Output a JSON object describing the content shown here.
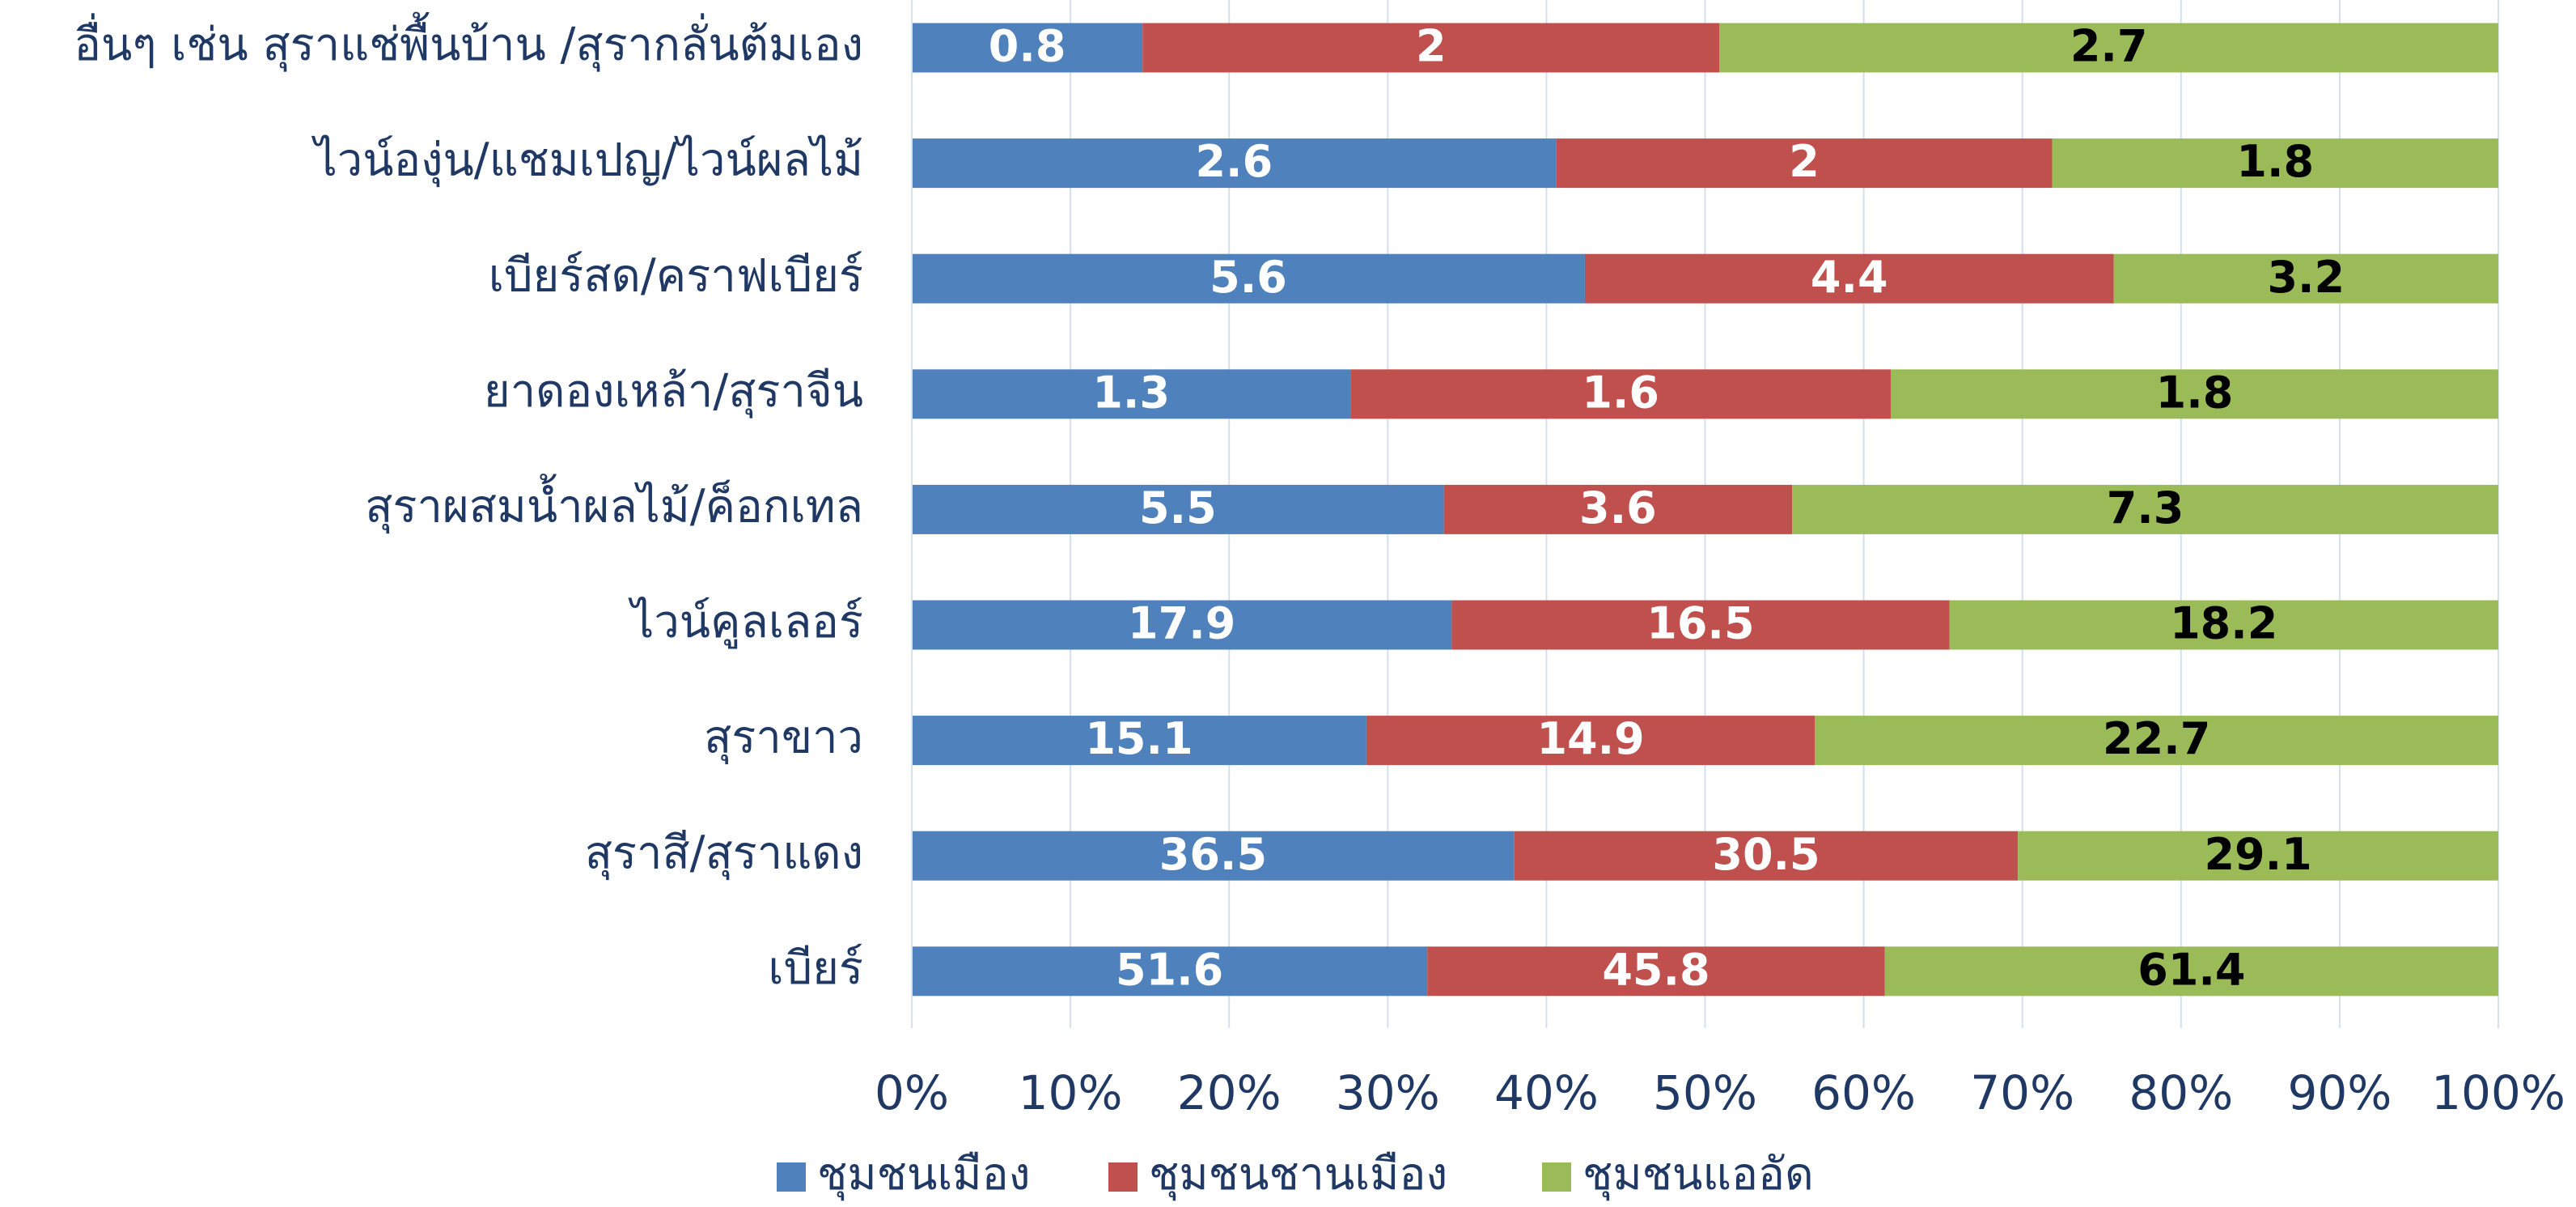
{
  "chart_data": {
    "type": "stacked_bar_100_horizontal",
    "categories": [
      "อื่นๆ เช่น สุราแช่พื้นบ้าน /สุรากลั่นต้มเอง",
      "ไวน์องุ่น/แชมเปญ/ไวน์ผลไม้",
      "เบียร์สด/คราฟเบียร์",
      "ยาดองเหล้า/สุราจีน",
      "สุราผสมน้ำผลไม้/ค็อกเทล",
      "ไวน์คูลเลอร์",
      "สุราขาว",
      "สุราสี/สุราแดง",
      "เบียร์"
    ],
    "series": [
      {
        "name": "ชุมชนเมือง",
        "color": "#4f81bd",
        "label_color": "#ffffff",
        "values": [
          0.8,
          2.6,
          5.6,
          1.3,
          5.5,
          17.9,
          15.1,
          36.5,
          51.6
        ]
      },
      {
        "name": "ชุมชนชานเมือง",
        "color": "#c0504d",
        "label_color": "#ffffff",
        "values": [
          2,
          2,
          4.4,
          1.6,
          3.6,
          16.5,
          14.9,
          30.5,
          45.8
        ]
      },
      {
        "name": "ชุมชนแออัด",
        "color": "#9bbb59",
        "label_color": "#000000",
        "values": [
          2.7,
          1.8,
          3.2,
          1.8,
          7.3,
          18.2,
          22.7,
          29.1,
          61.4
        ]
      }
    ],
    "xlim": [
      0,
      100
    ],
    "xticks": [
      {
        "value": 0,
        "label": "0%"
      },
      {
        "value": 10,
        "label": "10%"
      },
      {
        "value": 20,
        "label": "20%"
      },
      {
        "value": 30,
        "label": "30%"
      },
      {
        "value": 40,
        "label": "40%"
      },
      {
        "value": 50,
        "label": "50%"
      },
      {
        "value": 60,
        "label": "60%"
      },
      {
        "value": 70,
        "label": "70%"
      },
      {
        "value": 80,
        "label": "80%"
      },
      {
        "value": 90,
        "label": "90%"
      },
      {
        "value": 100,
        "label": "100%"
      }
    ],
    "grid": true,
    "legend": "bottom"
  }
}
